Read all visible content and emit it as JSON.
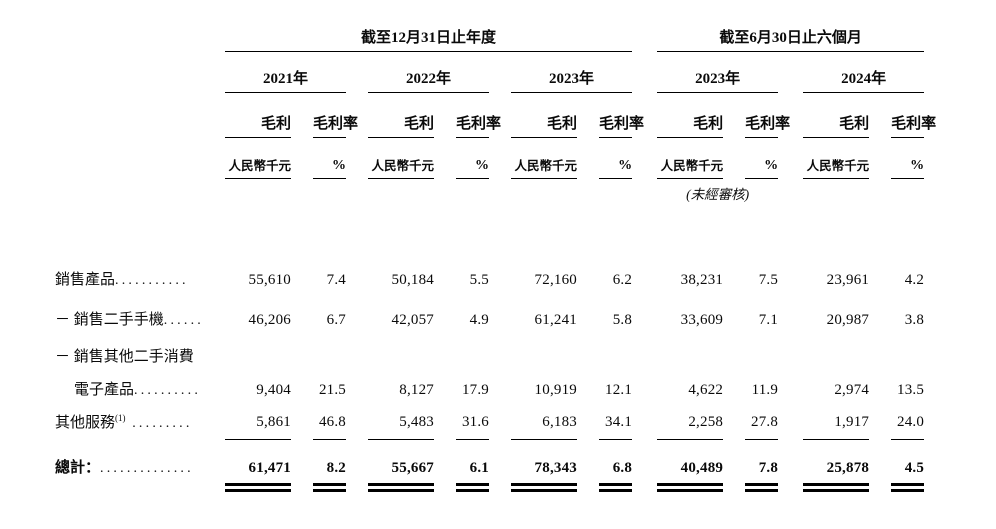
{
  "page": {
    "background": "#ffffff",
    "text_color": "#0a0a0a"
  },
  "table": {
    "period_groups": [
      {
        "title": "截至12月31日止年度",
        "years": [
          "2021年",
          "2022年",
          "2023年"
        ]
      },
      {
        "title": "截至6月30日止六個月",
        "years": [
          "2023年",
          "2024年"
        ]
      }
    ],
    "subheaders": {
      "gross_profit": "毛利",
      "gross_margin": "毛利率",
      "unit_rmb": "人民幣千元",
      "unit_pct": "%"
    },
    "unaudited_note": "(未經審核)",
    "rows": [
      {
        "label": "銷售產品",
        "dots": "...........",
        "values": [
          "55,610",
          "7.4",
          "50,184",
          "5.5",
          "72,160",
          "6.2",
          "38,231",
          "7.5",
          "23,961",
          "4.2"
        ]
      },
      {
        "label": "－ 銷售二手手機",
        "dots": "......",
        "values": [
          "46,206",
          "6.7",
          "42,057",
          "4.9",
          "61,241",
          "5.8",
          "33,609",
          "7.1",
          "20,987",
          "3.8"
        ]
      },
      {
        "label": "－ 銷售其他二手消費",
        "dots": "",
        "values": null
      },
      {
        "label": "電子產品",
        "dots": "..........",
        "indent": 1,
        "values": [
          "9,404",
          "21.5",
          "8,127",
          "17.9",
          "10,919",
          "12.1",
          "4,622",
          "11.9",
          "2,974",
          "13.5"
        ]
      },
      {
        "label": "其他服務",
        "sup": "(1)",
        "dots": " .........",
        "rule_below": "single",
        "values": [
          "5,861",
          "46.8",
          "5,483",
          "31.6",
          "6,183",
          "34.1",
          "2,258",
          "27.8",
          "1,917",
          "24.0"
        ]
      }
    ],
    "total_row": {
      "label": "總計：",
      "dots": "..............",
      "values": [
        "61,471",
        "8.2",
        "55,667",
        "6.1",
        "78,343",
        "6.8",
        "40,489",
        "7.8",
        "25,878",
        "4.5"
      ]
    }
  }
}
